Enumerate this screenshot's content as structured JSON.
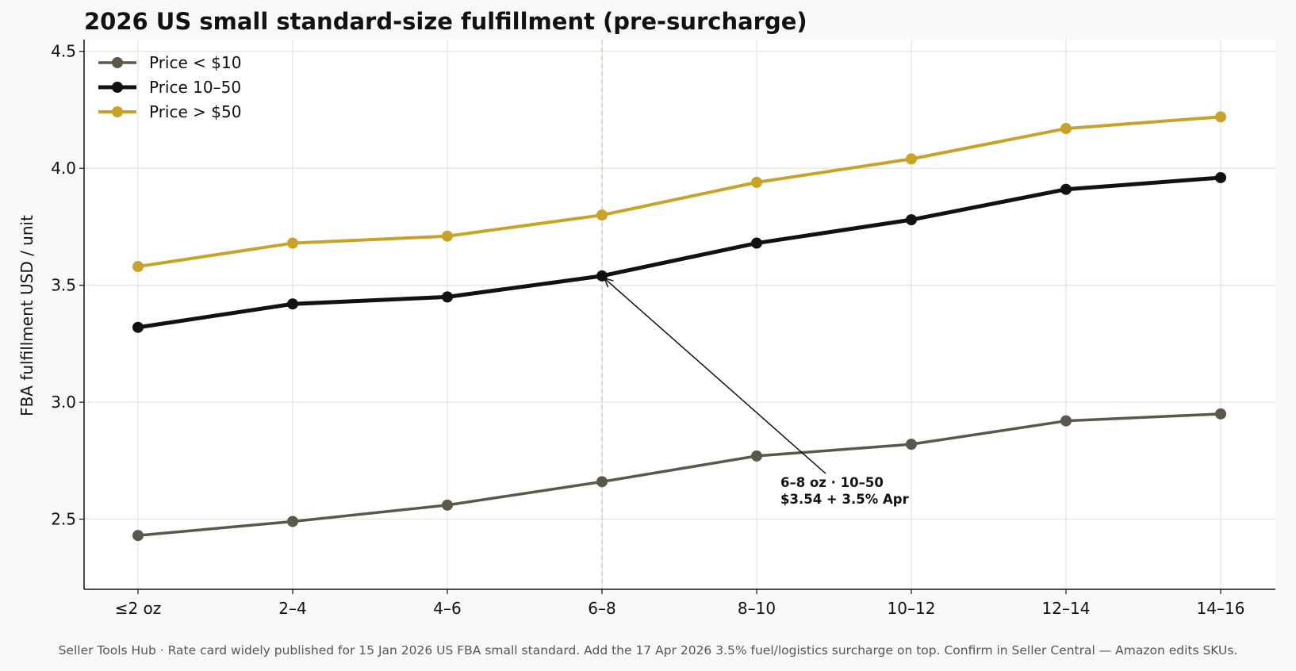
{
  "footer": "Seller Tools Hub  ·  Rate card widely published for 15 Jan 2026 US FBA small standard. Add the 17 Apr 2026 3.5% fuel/logistics surcharge on top. Confirm in Seller Central — Amazon edits SKUs.",
  "chart_data": {
    "type": "line",
    "title": "2026 US small standard-size fulfillment (pre-surcharge)",
    "xlabel": "",
    "ylabel": "FBA fulfillment USD / unit",
    "categories": [
      "≤2 oz",
      "2–4",
      "4–6",
      "6–8",
      "8–10",
      "10–12",
      "12–14",
      "14–16"
    ],
    "ylim": [
      2.2,
      4.55
    ],
    "yticks": [
      "2.5",
      "3.0",
      "3.5",
      "4.0",
      "4.5"
    ],
    "grid": true,
    "legend_position": "top-left",
    "series": [
      {
        "name": "Price < $10",
        "color": "#5c574b",
        "values": [
          2.43,
          2.49,
          2.56,
          2.66,
          2.77,
          2.82,
          2.92,
          2.95
        ]
      },
      {
        "name": "Price 10–50",
        "color": "#111111",
        "values": [
          3.32,
          3.42,
          3.45,
          3.54,
          3.68,
          3.78,
          3.91,
          3.96
        ]
      },
      {
        "name": "Price > $50",
        "color": "#c9a22a",
        "values": [
          3.58,
          3.68,
          3.71,
          3.8,
          3.94,
          4.04,
          4.17,
          4.22
        ]
      }
    ],
    "highlight_category": "6–8",
    "annotation": {
      "category": "6–8",
      "series": "Price 10–50",
      "lines": [
        "6–8 oz · 10–50",
        "$3.54 + 3.5% Apr"
      ]
    }
  }
}
